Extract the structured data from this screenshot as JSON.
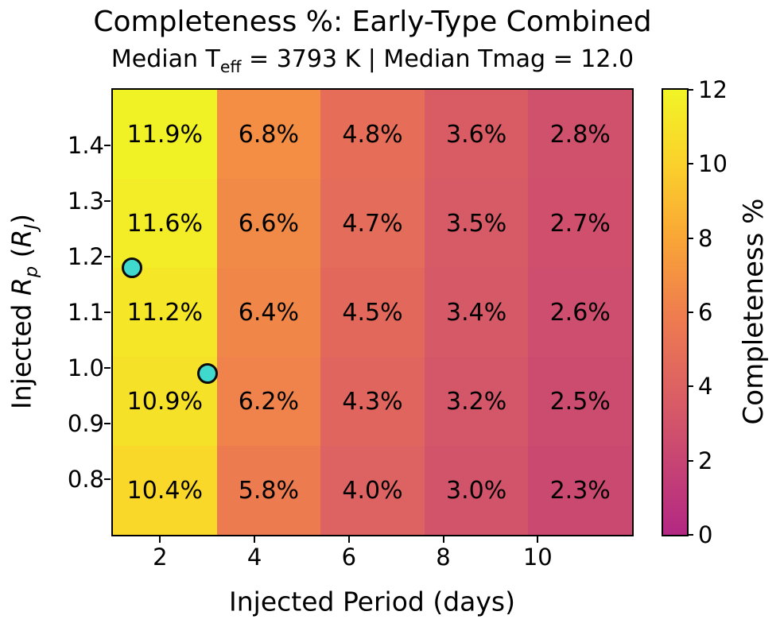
{
  "figure": {
    "title": "Completeness %: Early-Type Combined",
    "subtitle": {
      "prefix": "Median T",
      "sub": "eff",
      "suffix": " = 3793 K | Median Tmag = 12.0"
    }
  },
  "chart_data": {
    "type": "heatmap",
    "title": "Completeness %: Early-Type Combined",
    "subtitle": "Median T_eff = 3793 K | Median Tmag = 12.0",
    "xlabel": "Injected Period (days)",
    "ylabel": "Injected R_p (R_J)",
    "ylabel_parts": [
      {
        "text": "Injected ",
        "style": "normal"
      },
      {
        "text": "R",
        "style": "italic"
      },
      {
        "text": "p",
        "style": "italic-sub"
      },
      {
        "text": " (",
        "style": "normal"
      },
      {
        "text": "R",
        "style": "italic"
      },
      {
        "text": "J",
        "style": "italic-sub"
      },
      {
        "text": ")",
        "style": "normal"
      }
    ],
    "x_range": [
      1,
      12
    ],
    "y_range": [
      0.7,
      1.5
    ],
    "x_ticks": [
      2,
      4,
      6,
      8,
      10
    ],
    "y_ticks": [
      "1.4",
      "1.3",
      "1.2",
      "1.1",
      "1.0",
      "0.9",
      "0.8"
    ],
    "col_edges_days": [
      1.0,
      3.2,
      5.4,
      7.6,
      9.8,
      12.0
    ],
    "row_edges_rj": [
      1.5,
      1.34,
      1.18,
      1.02,
      0.86,
      0.7
    ],
    "grid": false,
    "values": [
      [
        11.9,
        6.8,
        4.8,
        3.6,
        2.8
      ],
      [
        11.6,
        6.6,
        4.7,
        3.5,
        2.7
      ],
      [
        11.2,
        6.4,
        4.5,
        3.4,
        2.6
      ],
      [
        10.9,
        6.2,
        4.3,
        3.2,
        2.5
      ],
      [
        10.4,
        5.8,
        4.0,
        3.0,
        2.3
      ]
    ],
    "labels": [
      [
        "11.9%",
        "6.8%",
        "4.8%",
        "3.6%",
        "2.8%"
      ],
      [
        "11.6%",
        "6.6%",
        "4.7%",
        "3.5%",
        "2.7%"
      ],
      [
        "11.2%",
        "6.4%",
        "4.5%",
        "3.4%",
        "2.6%"
      ],
      [
        "10.9%",
        "6.2%",
        "4.3%",
        "3.2%",
        "2.5%"
      ],
      [
        "10.4%",
        "5.8%",
        "4.0%",
        "3.0%",
        "2.3%"
      ]
    ],
    "cell_colors": [
      [
        "#f1f226",
        "#f38e44",
        "#e66e59",
        "#d95c65",
        "#d0516c"
      ],
      [
        "#f3ed27",
        "#f28a47",
        "#e46c5a",
        "#d75b66",
        "#cf4f6d"
      ],
      [
        "#f5e628",
        "#f18649",
        "#e2685c",
        "#d65967",
        "#cd4e6e"
      ],
      [
        "#f6e129",
        "#f0824c",
        "#e0655e",
        "#d45669",
        "#cc4c6f"
      ],
      [
        "#f9d82a",
        "#ed7b50",
        "#dd6262",
        "#d2546a",
        "#ca4970"
      ]
    ],
    "colorbar": {
      "label": "Completeness %",
      "range": [
        0,
        12
      ],
      "ticks": [
        0,
        2,
        4,
        6,
        8,
        10,
        12
      ],
      "gradient_stops": [
        {
          "value": 0,
          "color": "#b32883"
        },
        {
          "value": 2,
          "color": "#c74573"
        },
        {
          "value": 4,
          "color": "#dd6262"
        },
        {
          "value": 6,
          "color": "#ef7e4e"
        },
        {
          "value": 8,
          "color": "#f9a636"
        },
        {
          "value": 10,
          "color": "#fbd12b"
        },
        {
          "value": 12,
          "color": "#f1f426"
        }
      ],
      "position": "right"
    },
    "markers": {
      "description": "cyan scatter points",
      "fill_color": "#40d9cd",
      "edge_color": "#0b0b0b",
      "points": [
        {
          "period_days": 1.4,
          "rp_rj": 1.18
        },
        {
          "period_days": 3.0,
          "rp_rj": 0.99
        }
      ]
    }
  }
}
